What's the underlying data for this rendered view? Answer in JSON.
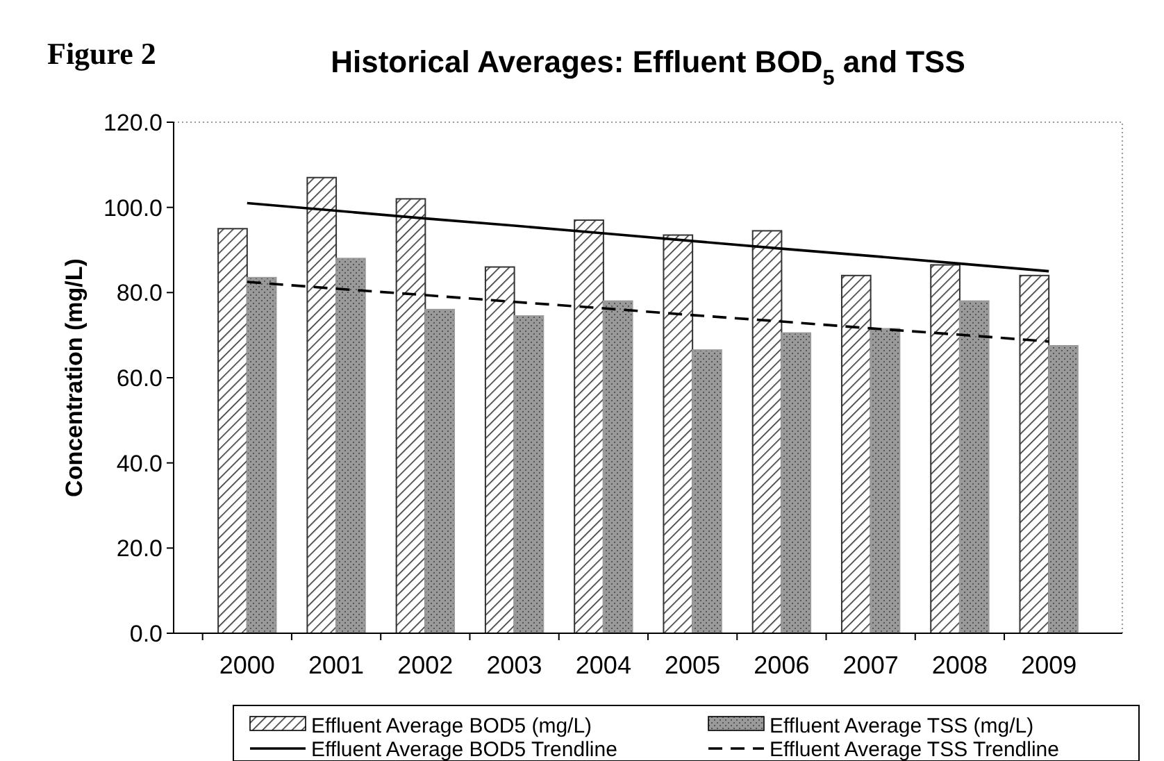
{
  "chart_data": {
    "type": "bar",
    "title": "Historical Averages: Effluent BOD$_{5}$ and TSS",
    "ylabel": "Concentration (mg/L)",
    "annotations": [
      "Figure 2"
    ],
    "categories": [
      "2000",
      "2001",
      "2002",
      "2003",
      "2004",
      "2005",
      "2006",
      "2007",
      "2008",
      "2009"
    ],
    "series": [
      {
        "name": "Effluent Average BOD5 (mg/L)",
        "color": "#333333",
        "values": [
          95,
          107,
          102,
          86,
          97,
          93.5,
          94.5,
          84,
          86.5,
          84
        ]
      },
      {
        "name": "Effluent Average TSS (mg/L)",
        "color": "#9a9a9a",
        "values": [
          83.5,
          88,
          76,
          74.5,
          78,
          66.5,
          70.5,
          71.5,
          78,
          67.5
        ]
      },
      {
        "name": "Effluent Average BOD5 Trendline",
        "type": "line",
        "color": "#000000",
        "line_style": "solid",
        "values": [
          101,
          99.2,
          97.4,
          95.7,
          93.9,
          92.1,
          90.3,
          88.6,
          86.8,
          85
        ]
      },
      {
        "name": "Effluent Average TSS Trendline",
        "type": "line",
        "color": "#000000",
        "line_style": "dashed",
        "values": [
          82.5,
          80.9,
          79.4,
          77.8,
          76.3,
          74.7,
          73.2,
          71.6,
          70.1,
          68.5
        ]
      }
    ],
    "ylim": [
      0,
      120
    ],
    "yticks": [
      {
        "value": 0,
        "label": "0.0"
      },
      {
        "value": 20,
        "label": "20.0"
      },
      {
        "value": 40,
        "label": "40.0"
      },
      {
        "value": 60,
        "label": "60.0"
      },
      {
        "value": 80,
        "label": "80.0"
      },
      {
        "value": 100,
        "label": "100.0"
      },
      {
        "value": 120,
        "label": "120.0"
      }
    ],
    "grid": false,
    "legend": "bottom",
    "marker": "none"
  }
}
